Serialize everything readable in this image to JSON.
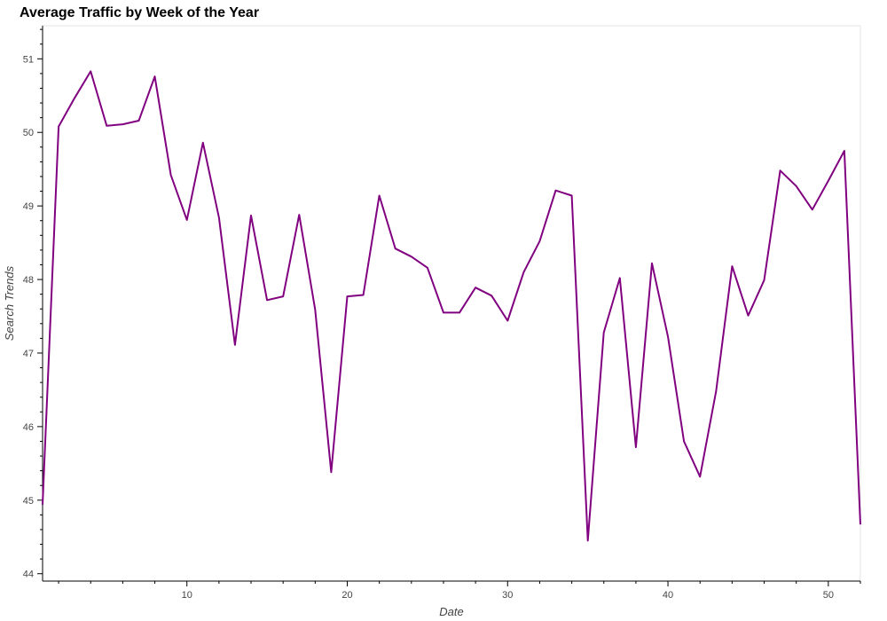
{
  "chart_data": {
    "type": "line",
    "title": "Average Traffic by Week of the Year",
    "xlabel": "Date",
    "ylabel": "Search Trends",
    "xlim": [
      1,
      52
    ],
    "ylim": [
      43.9,
      51.45
    ],
    "x_ticks": [
      10,
      20,
      30,
      40,
      50
    ],
    "y_ticks": [
      44,
      45,
      46,
      47,
      48,
      49,
      50,
      51
    ],
    "line_color": "#800080",
    "grid": false,
    "series": [
      {
        "x": [
          1,
          2,
          3,
          4,
          5,
          6,
          7,
          8,
          9,
          10,
          11,
          12,
          13,
          14,
          15,
          16,
          17,
          18,
          19,
          20,
          21,
          22,
          23,
          24,
          25,
          26,
          27,
          28,
          29,
          30,
          31,
          32,
          33,
          34,
          35,
          36,
          37,
          38,
          39,
          40,
          41,
          42,
          43,
          44,
          45,
          46,
          47,
          48,
          49,
          50,
          51,
          52
        ],
        "values": [
          44.94,
          50.08,
          50.47,
          50.83,
          50.09,
          50.11,
          50.16,
          50.76,
          49.42,
          48.81,
          49.86,
          48.84,
          47.11,
          48.87,
          47.72,
          47.77,
          48.88,
          47.59,
          45.38,
          47.77,
          47.79,
          49.14,
          48.42,
          48.31,
          48.16,
          47.55,
          47.55,
          47.89,
          47.78,
          47.44,
          48.1,
          48.52,
          49.21,
          49.14,
          44.45,
          47.28,
          48.02,
          45.72,
          48.22,
          47.22,
          45.8,
          45.32,
          46.48,
          48.18,
          47.51,
          47.99,
          49.48,
          49.27,
          48.95,
          49.34,
          49.75,
          44.67
        ]
      }
    ]
  }
}
